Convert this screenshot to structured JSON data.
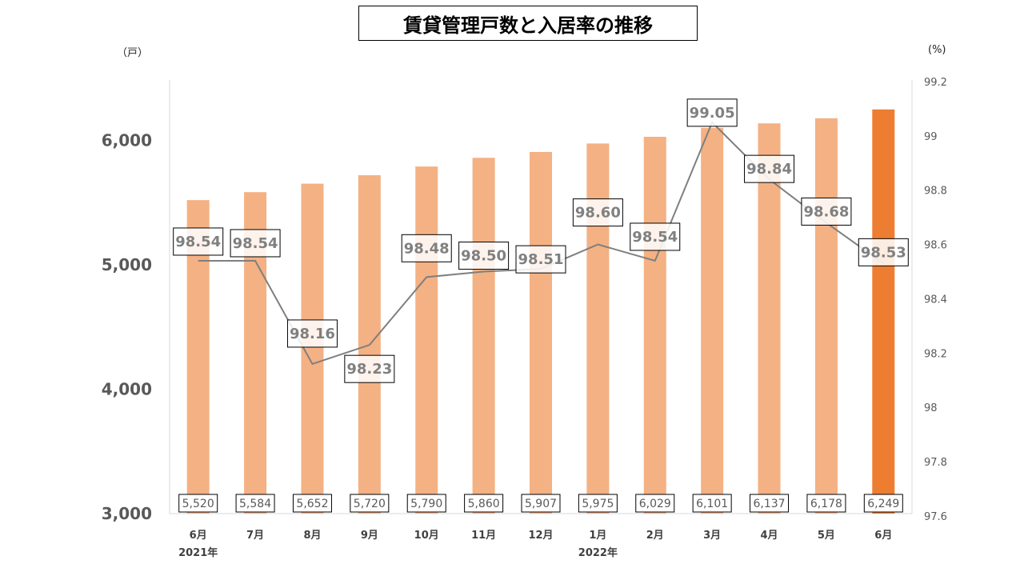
{
  "chart_data": {
    "type": "bar+line",
    "title": "賃貸管理戸数と入居率の推移",
    "left_unit": "（戸）",
    "right_unit": "(%)",
    "categories": [
      "6月",
      "7月",
      "8月",
      "9月",
      "10月",
      "11月",
      "12月",
      "1月",
      "2月",
      "3月",
      "4月",
      "5月",
      "6月"
    ],
    "year_labels": [
      {
        "index": 0,
        "label": "2021年"
      },
      {
        "index": 7,
        "label": "2022年"
      }
    ],
    "series": [
      {
        "name": "賃貸管理戸数",
        "type": "bar",
        "axis": "left",
        "values": [
          5520,
          5584,
          5652,
          5720,
          5790,
          5860,
          5907,
          5975,
          6029,
          6101,
          6137,
          6178,
          6249
        ],
        "value_labels": [
          "5,520",
          "5,584",
          "5,652",
          "5,720",
          "5,790",
          "5,860",
          "5,907",
          "5,975",
          "6,029",
          "6,101",
          "6,137",
          "6,178",
          "6,249"
        ]
      },
      {
        "name": "入居率",
        "type": "line",
        "axis": "right",
        "values": [
          98.54,
          98.54,
          98.16,
          98.23,
          98.48,
          98.5,
          98.51,
          98.6,
          98.54,
          99.05,
          98.84,
          98.68,
          98.53
        ],
        "value_labels": [
          "98.54",
          "98.54",
          "98.16",
          "98.23",
          "98.48",
          "98.50",
          "98.51",
          "98.60",
          "98.54",
          "99.05",
          "98.84",
          "98.68",
          "98.53"
        ]
      }
    ],
    "left_axis": {
      "ylim": [
        3000,
        6500
      ],
      "ticks": [
        3000,
        4000,
        5000,
        6000
      ],
      "tick_labels": [
        "3,000",
        "4,000",
        "5,000",
        "6,000"
      ]
    },
    "right_axis": {
      "ylim": [
        97.6,
        99.2
      ],
      "ticks": [
        97.6,
        97.8,
        98,
        98.2,
        98.4,
        98.6,
        98.8,
        99,
        99.2
      ],
      "tick_labels": [
        "97.6",
        "97.8",
        "98",
        "98.2",
        "98.4",
        "98.6",
        "98.8",
        "99",
        "99.2"
      ]
    },
    "colors": {
      "bar": "#F4B183",
      "bar_highlight": "#ED7D31",
      "line": "#7F7F7F",
      "axis": "#D9D9D9"
    },
    "grid": false
  }
}
